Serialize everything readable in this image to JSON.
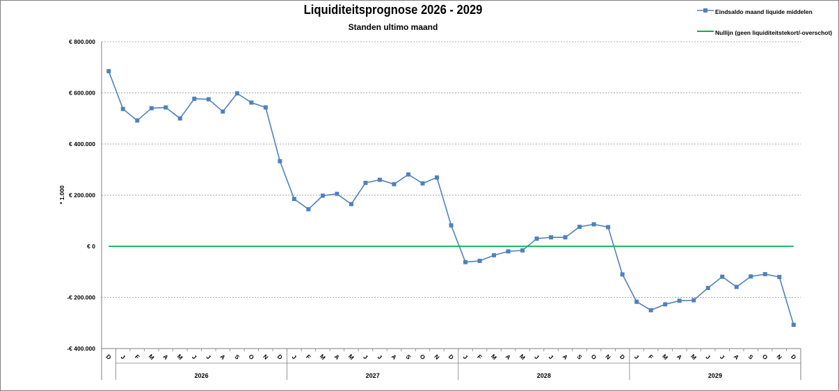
{
  "chart_data": {
    "type": "line",
    "title": "Liquiditeitsprognose 2026 - 2029",
    "subtitle": "Standen ultimo maand",
    "ylabel": "* 1.000",
    "ylim": [
      -400000,
      800000
    ],
    "yticks": [
      {
        "value": 800000,
        "label": "€ 800.000"
      },
      {
        "value": 600000,
        "label": "€ 600.000"
      },
      {
        "value": 400000,
        "label": "€ 400.000"
      },
      {
        "value": 200000,
        "label": "€ 200.000"
      },
      {
        "value": 0,
        "label": "€ 0"
      },
      {
        "value": -200000,
        "label": "-€ 200.000"
      },
      {
        "value": -400000,
        "label": "-€ 400.000"
      }
    ],
    "grid": true,
    "legend_position": "top-right",
    "x": [
      "D",
      "J",
      "F",
      "M",
      "A",
      "M",
      "J",
      "J",
      "A",
      "S",
      "O",
      "N",
      "D",
      "J",
      "F",
      "M",
      "A",
      "M",
      "J",
      "J",
      "A",
      "S",
      "O",
      "N",
      "D",
      "J",
      "F",
      "M",
      "A",
      "M",
      "J",
      "J",
      "A",
      "S",
      "O",
      "N",
      "D",
      "J",
      "F",
      "M",
      "A",
      "M",
      "J",
      "J",
      "A",
      "S",
      "O",
      "N",
      "D"
    ],
    "years": [
      "2026",
      "2027",
      "2028",
      "2029"
    ],
    "series": [
      {
        "name": "Eindsaldo maand liquide middelen",
        "color": "#4f81bd",
        "marker": "square",
        "values": [
          685000,
          537000,
          492000,
          540000,
          543000,
          500000,
          577000,
          575000,
          527000,
          598000,
          562000,
          543000,
          333000,
          185000,
          145000,
          198000,
          205000,
          165000,
          248000,
          260000,
          243000,
          281000,
          246000,
          269000,
          82000,
          -62000,
          -57000,
          -35000,
          -20000,
          -16000,
          30000,
          35000,
          35000,
          76000,
          86000,
          75000,
          -110000,
          -217000,
          -250000,
          -227000,
          -213000,
          -211000,
          -163000,
          -119000,
          -159000,
          -118000,
          -109000,
          -120000,
          -307000
        ]
      },
      {
        "name": "Nullijn (geen liquiditeitstekort/-overschot)",
        "color": "#00b050",
        "marker": "none",
        "values": [
          0,
          0,
          0,
          0,
          0,
          0,
          0,
          0,
          0,
          0,
          0,
          0,
          0,
          0,
          0,
          0,
          0,
          0,
          0,
          0,
          0,
          0,
          0,
          0,
          0,
          0,
          0,
          0,
          0,
          0,
          0,
          0,
          0,
          0,
          0,
          0,
          0,
          0,
          0,
          0,
          0,
          0,
          0,
          0,
          0,
          0,
          0,
          0,
          0
        ]
      }
    ]
  }
}
